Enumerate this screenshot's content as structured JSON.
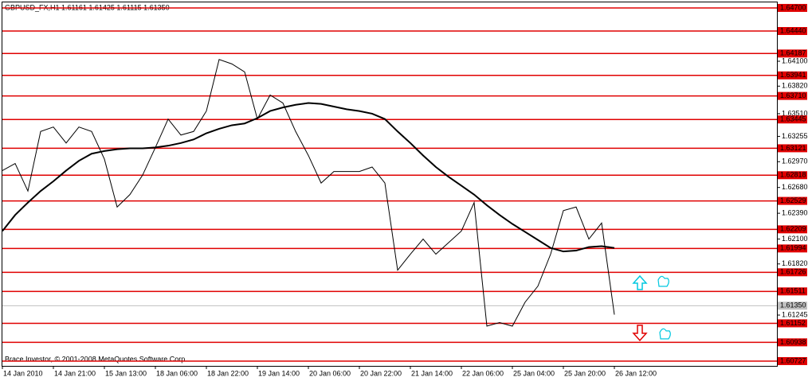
{
  "chart_data": {
    "type": "line",
    "title": "GBPUSD_FX,H1  1.61161 1.61425 1.61115 1.61350",
    "annotations": [
      "Brace Investor, © 2001-2008 MetaQuotes Software Corp."
    ],
    "categories": [
      "14 Jan 2010",
      null,
      null,
      null,
      "14 Jan 21:00",
      null,
      null,
      null,
      "15 Jan 13:00",
      null,
      null,
      null,
      "18 Jan 06:00",
      null,
      null,
      null,
      "18 Jan 22:00",
      null,
      null,
      null,
      "19 Jan 14:00",
      null,
      null,
      null,
      "20 Jan 06:00",
      null,
      null,
      null,
      "20 Jan 22:00",
      null,
      null,
      null,
      "21 Jan 14:00",
      null,
      null,
      null,
      "22 Jan 06:00",
      null,
      null,
      null,
      "25 Jan 04:00",
      null,
      null,
      null,
      "25 Jan 20:00",
      null,
      null,
      null,
      "26 Jan 12:00"
    ],
    "series": [
      {
        "color": "#000000",
        "values": [
          1.6287,
          1.6295,
          1.6264,
          1.6331,
          1.6336,
          1.6318,
          1.6336,
          1.6331,
          1.63,
          1.6246,
          1.626,
          1.6282,
          1.6313,
          1.6345,
          1.6327,
          1.6331,
          1.6354,
          1.6412,
          1.6407,
          1.6398,
          1.6345,
          1.6372,
          1.6363,
          1.6331,
          1.6304,
          1.6273,
          1.6286,
          1.6286,
          1.6286,
          1.6291,
          1.6273,
          1.6175,
          1.6193,
          1.621,
          1.6193,
          1.6206,
          1.6219,
          1.6251,
          1.6112,
          1.6116,
          1.6112,
          1.6139,
          1.6157,
          1.6193,
          1.6242,
          1.6246,
          1.621,
          1.6228,
          1.6125
        ]
      },
      {
        "color": "#000000",
        "values": [
          1.6219,
          1.6237,
          1.6251,
          1.6264,
          1.6275,
          1.6287,
          1.6298,
          1.6306,
          1.6309,
          1.6311,
          1.6312,
          1.6312,
          1.6313,
          1.6315,
          1.6318,
          1.6322,
          1.6329,
          1.6334,
          1.6338,
          1.634,
          1.6346,
          1.6354,
          1.6358,
          1.6361,
          1.6363,
          1.6362,
          1.6359,
          1.6356,
          1.6354,
          1.6351,
          1.6345,
          1.6331,
          1.6318,
          1.6304,
          1.6291,
          1.628,
          1.627,
          1.626,
          1.6248,
          1.6237,
          1.6227,
          1.6218,
          1.6209,
          1.62,
          1.6196,
          1.6197,
          1.6201,
          1.6202,
          1.62
        ]
      }
    ],
    "ylim": [
      1.60673,
      1.64789
    ],
    "yticks": [
      {
        "value": 1.641,
        "label": "1.64100"
      },
      {
        "value": 1.6382,
        "label": "1.63820"
      },
      {
        "value": 1.6351,
        "label": "1.63510"
      },
      1.63255,
      {
        "value": 1.6297,
        "label": "1.62970"
      },
      {
        "value": 1.6268,
        "label": "1.62680"
      },
      {
        "value": 1.6239,
        "label": "1.62390"
      },
      {
        "value": 1.621,
        "label": "1.62100"
      },
      {
        "value": 1.6182,
        "label": "1.61820"
      },
      1.61245
    ],
    "levels": [
      {
        "value": 1.647,
        "label": "1.64700"
      },
      {
        "value": 1.6444,
        "label": "1.64440"
      },
      1.64187,
      1.63941,
      {
        "value": 1.6371,
        "label": "1.63710"
      },
      1.63445,
      1.63121,
      1.62818,
      1.62529,
      1.62209,
      1.61994,
      1.61726,
      1.61511,
      1.61152,
      1.60938,
      1.60727
    ],
    "levels_color": "#e00000",
    "current_price": {
      "value": 1.6135,
      "label": "1.61350"
    }
  }
}
